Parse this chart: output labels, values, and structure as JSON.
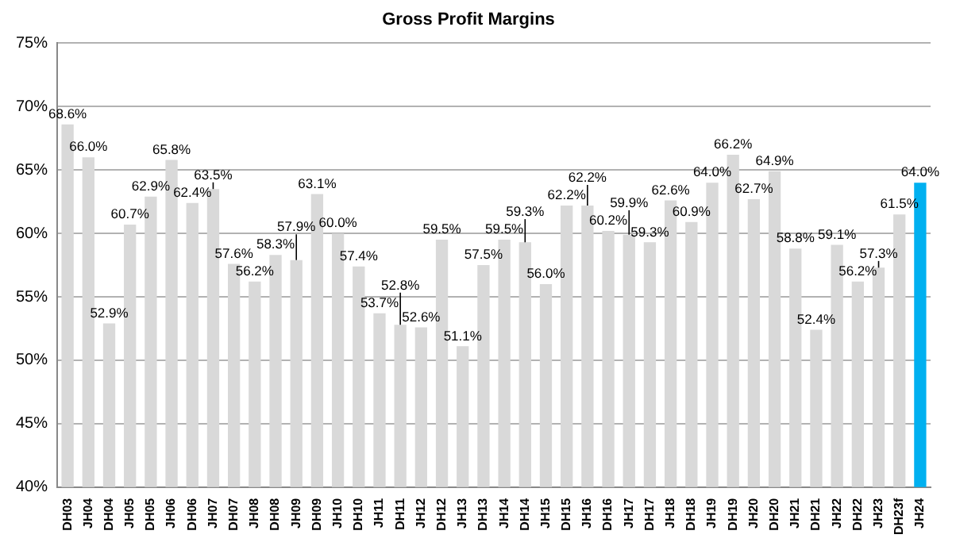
{
  "chart_data": {
    "type": "bar",
    "title": "Gross Profit Margins",
    "categories": [
      "DH03",
      "JH04",
      "DH04",
      "JH05",
      "DH05",
      "JH06",
      "DH06",
      "JH07",
      "DH07",
      "JH08",
      "DH08",
      "JH09",
      "DH09",
      "JH10",
      "DH10",
      "JH11",
      "DH11",
      "JH12",
      "DH12",
      "JH13",
      "DH13",
      "JH14",
      "DH14",
      "JH15",
      "DH15",
      "JH16",
      "DH16",
      "JH17",
      "DH17",
      "JH18",
      "DH18",
      "JH19",
      "DH19",
      "JH20",
      "DH20",
      "JH21",
      "DH21",
      "JH22",
      "DH22",
      "JH23",
      "DH23f",
      "JH24"
    ],
    "values": [
      68.6,
      66.0,
      52.9,
      60.7,
      62.9,
      65.8,
      62.4,
      63.5,
      57.6,
      56.2,
      58.3,
      57.9,
      63.1,
      60.0,
      57.4,
      53.7,
      52.8,
      52.6,
      59.5,
      51.1,
      57.5,
      59.5,
      59.3,
      56.0,
      62.2,
      62.2,
      60.2,
      59.9,
      59.3,
      62.6,
      60.9,
      64.0,
      66.2,
      62.7,
      64.9,
      58.8,
      52.4,
      59.1,
      56.2,
      57.3,
      61.5,
      64.0
    ],
    "value_labels": [
      "68.6%",
      "66.0%",
      "52.9%",
      "60.7%",
      "62.9%",
      "65.8%",
      "62.4%",
      "63.5%",
      "57.6%",
      "56.2%",
      "58.3%",
      "57.9%",
      "63.1%",
      "60.0%",
      "57.4%",
      "53.7%",
      "52.8%",
      "52.6%",
      "59.5%",
      "51.1%",
      "57.5%",
      "59.5%",
      "59.3%",
      "56.0%",
      "62.2%",
      "62.2%",
      "60.2%",
      "59.9%",
      "59.3%",
      "62.6%",
      "60.9%",
      "64.0%",
      "66.2%",
      "62.7%",
      "64.9%",
      "58.8%",
      "52.4%",
      "59.1%",
      "56.2%",
      "57.3%",
      "61.5%",
      "64.0%"
    ],
    "colors": [
      "#d9d9d9",
      "#d9d9d9",
      "#d9d9d9",
      "#d9d9d9",
      "#d9d9d9",
      "#d9d9d9",
      "#d9d9d9",
      "#d9d9d9",
      "#d9d9d9",
      "#d9d9d9",
      "#d9d9d9",
      "#d9d9d9",
      "#d9d9d9",
      "#d9d9d9",
      "#d9d9d9",
      "#d9d9d9",
      "#d9d9d9",
      "#d9d9d9",
      "#d9d9d9",
      "#d9d9d9",
      "#d9d9d9",
      "#d9d9d9",
      "#d9d9d9",
      "#d9d9d9",
      "#d9d9d9",
      "#d9d9d9",
      "#d9d9d9",
      "#d9d9d9",
      "#d9d9d9",
      "#d9d9d9",
      "#d9d9d9",
      "#d9d9d9",
      "#d9d9d9",
      "#d9d9d9",
      "#d9d9d9",
      "#d9d9d9",
      "#d9d9d9",
      "#d9d9d9",
      "#d9d9d9",
      "#d9d9d9",
      "#d9d9d9",
      "#00b0f0"
    ],
    "ylim": [
      40,
      75
    ],
    "yticks": [
      {
        "value": 40,
        "label": "40%"
      },
      {
        "value": 45,
        "label": "45%"
      },
      {
        "value": 50,
        "label": "50%"
      },
      {
        "value": 55,
        "label": "55%"
      },
      {
        "value": 60,
        "label": "60%"
      },
      {
        "value": 65,
        "label": "65%"
      },
      {
        "value": 70,
        "label": "70%"
      },
      {
        "value": 75,
        "label": "75%"
      }
    ],
    "grid": "y",
    "legend": false
  }
}
